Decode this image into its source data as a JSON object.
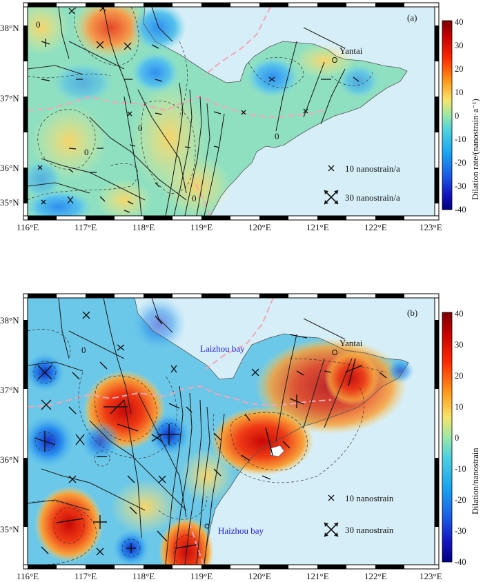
{
  "panels": [
    {
      "id": "a",
      "label": "(a)",
      "colorbar_title": "Dilation rate/(nanostrain·a⁻¹)",
      "legend_small": "10 nanostrain/a",
      "legend_large": "30 nanostrain/a",
      "city": "Yantai",
      "place_labels": [],
      "lat_ticks": [
        "38°N",
        "37°N",
        "36°N",
        "35°N"
      ],
      "lon_ticks": [
        "116°E",
        "117°E",
        "118°E",
        "119°E",
        "120°E",
        "121°E",
        "122°E",
        "123°E"
      ],
      "colorbar_ticks": [
        "40",
        "30",
        "20",
        "10",
        "0",
        "-10",
        "-20",
        "-30",
        "-40"
      ],
      "contour_labels": [
        "0",
        "0",
        "0",
        "0",
        "0"
      ]
    },
    {
      "id": "b",
      "label": "(b)",
      "colorbar_title": "Dilation/nanostrain",
      "legend_small": "10 nanostrain",
      "legend_large": "30 nanostrain",
      "city": "Yantai",
      "place_labels": [
        "Laizhou bay",
        "Haizhou bay"
      ],
      "lat_ticks": [
        "38°N",
        "37°N",
        "36°N",
        "35°N"
      ],
      "lon_ticks": [
        "116°E",
        "117°E",
        "118°E",
        "119°E",
        "120°E",
        "121°E",
        "122°E",
        "123°E"
      ],
      "colorbar_ticks": [
        "40",
        "30",
        "20",
        "10",
        "0",
        "-10",
        "-20",
        "-30",
        "-40"
      ],
      "contour_labels": [
        "0"
      ]
    }
  ],
  "colors": {
    "sea": "#d6eef8",
    "fault": "#222222",
    "boundary": "#f4a6b8",
    "contour": "#333333"
  }
}
